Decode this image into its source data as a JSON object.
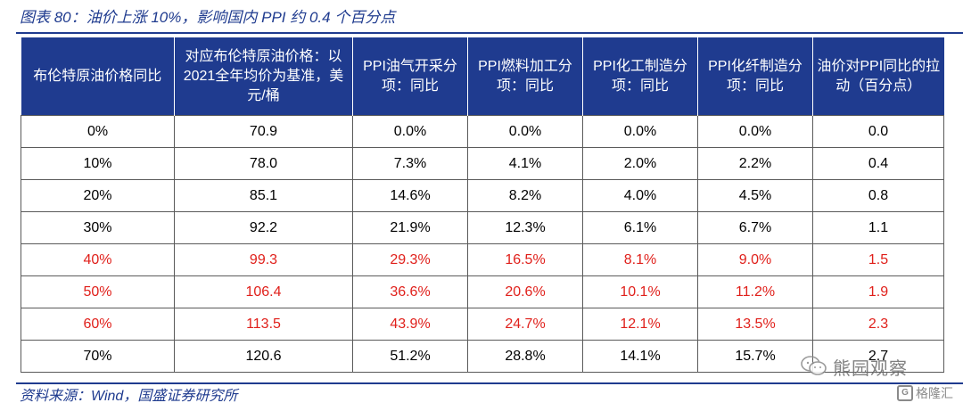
{
  "caption": "图表 80：油价上涨 10%，影响国内 PPI 约 0.4 个百分点",
  "table": {
    "headers": [
      "布伦特原油价格同比",
      "对应布伦特原油价格：以2021全年均价为基准，美元/桶",
      "PPI油气开采分项：同比",
      "PPI燃料加工分项：同比",
      "PPI化工制造分项：同比",
      "PPI化纤制造分项：同比",
      "油价对PPI同比的拉动（百分点）"
    ],
    "rows": [
      [
        "0%",
        "70.9",
        "0.0%",
        "0.0%",
        "0.0%",
        "0.0%",
        "0.0"
      ],
      [
        "10%",
        "78.0",
        "7.3%",
        "4.1%",
        "2.0%",
        "2.2%",
        "0.4"
      ],
      [
        "20%",
        "85.1",
        "14.6%",
        "8.2%",
        "4.0%",
        "4.5%",
        "0.8"
      ],
      [
        "30%",
        "92.2",
        "21.9%",
        "12.3%",
        "6.1%",
        "6.7%",
        "1.1"
      ],
      [
        "40%",
        "99.3",
        "29.3%",
        "16.5%",
        "8.1%",
        "9.0%",
        "1.5"
      ],
      [
        "50%",
        "106.4",
        "36.6%",
        "20.6%",
        "10.1%",
        "11.2%",
        "1.9"
      ],
      [
        "60%",
        "113.5",
        "43.9%",
        "24.7%",
        "12.1%",
        "13.5%",
        "2.3"
      ],
      [
        "70%",
        "120.6",
        "51.2%",
        "28.8%",
        "14.1%",
        "15.7%",
        "2.7"
      ]
    ]
  },
  "source": "资料来源：Wind，国盛证券研究所",
  "watermarks": {
    "wechat": "熊园观察",
    "gelonghui": "格隆汇",
    "gelonghui_icon": "G"
  },
  "colors": {
    "header_bg": "#1f3b8f",
    "caption": "#1f3b8f",
    "highlight_text": "#e0201b"
  }
}
